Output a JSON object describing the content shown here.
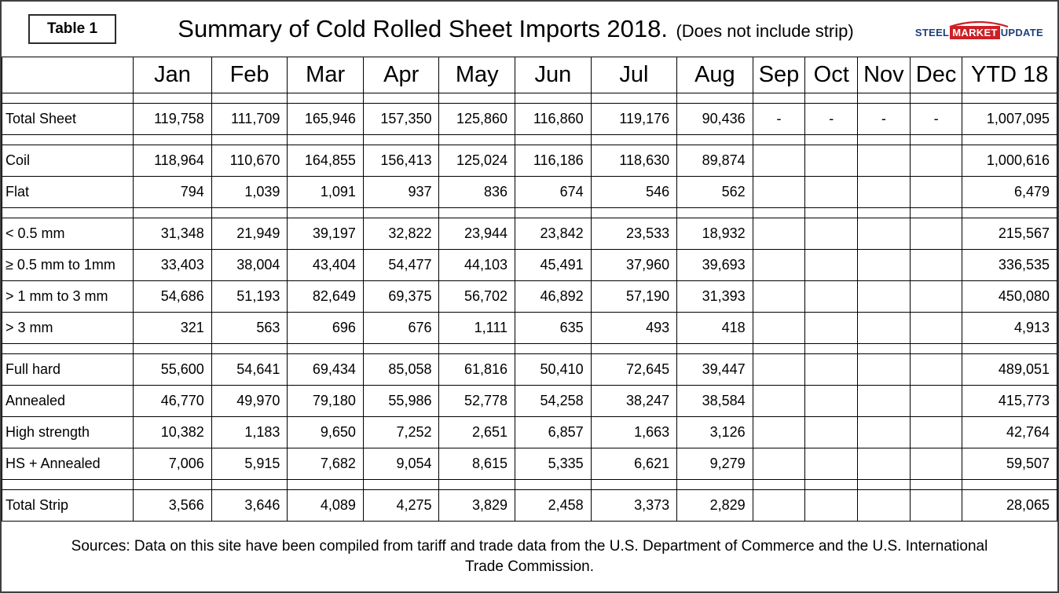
{
  "header": {
    "table_label": "Table 1",
    "title": "Summary of Cold Rolled Sheet Imports 2018.",
    "subtitle": "(Does not include strip)",
    "logo": {
      "steel": "STEEL",
      "market": "MARKET",
      "update": "UPDATE",
      "accent_red": "#cc2027",
      "accent_blue": "#1e3f7a"
    }
  },
  "chart_data": {
    "type": "table",
    "title": "Summary of Cold Rolled Sheet Imports 2018. (Does not include strip)",
    "columns": [
      "",
      "Jan",
      "Feb",
      "Mar",
      "Apr",
      "May",
      "Jun",
      "Jul",
      "Aug",
      "Sep",
      "Oct",
      "Nov",
      "Dec",
      "YTD 18"
    ],
    "rows": [
      {
        "spacer": true
      },
      {
        "label": "Total Sheet",
        "values": [
          "119,758",
          "111,709",
          "165,946",
          "157,350",
          "125,860",
          "116,860",
          "119,176",
          "90,436",
          "-",
          "-",
          "-",
          "-",
          "1,007,095"
        ]
      },
      {
        "spacer": true
      },
      {
        "label": "Coil",
        "values": [
          "118,964",
          "110,670",
          "164,855",
          "156,413",
          "125,024",
          "116,186",
          "118,630",
          "89,874",
          "",
          "",
          "",
          "",
          "1,000,616"
        ]
      },
      {
        "label": "Flat",
        "values": [
          "794",
          "1,039",
          "1,091",
          "937",
          "836",
          "674",
          "546",
          "562",
          "",
          "",
          "",
          "",
          "6,479"
        ]
      },
      {
        "spacer": true
      },
      {
        "label": "< 0.5 mm",
        "values": [
          "31,348",
          "21,949",
          "39,197",
          "32,822",
          "23,944",
          "23,842",
          "23,533",
          "18,932",
          "",
          "",
          "",
          "",
          "215,567"
        ]
      },
      {
        "label": "≥ 0.5 mm to 1mm",
        "values": [
          "33,403",
          "38,004",
          "43,404",
          "54,477",
          "44,103",
          "45,491",
          "37,960",
          "39,693",
          "",
          "",
          "",
          "",
          "336,535"
        ]
      },
      {
        "label": "> 1 mm to 3 mm",
        "values": [
          "54,686",
          "51,193",
          "82,649",
          "69,375",
          "56,702",
          "46,892",
          "57,190",
          "31,393",
          "",
          "",
          "",
          "",
          "450,080"
        ]
      },
      {
        "label": "> 3 mm",
        "values": [
          "321",
          "563",
          "696",
          "676",
          "1,111",
          "635",
          "493",
          "418",
          "",
          "",
          "",
          "",
          "4,913"
        ]
      },
      {
        "spacer": true
      },
      {
        "label": "Full hard",
        "values": [
          "55,600",
          "54,641",
          "69,434",
          "85,058",
          "61,816",
          "50,410",
          "72,645",
          "39,447",
          "",
          "",
          "",
          "",
          "489,051"
        ]
      },
      {
        "label": "Annealed",
        "values": [
          "46,770",
          "49,970",
          "79,180",
          "55,986",
          "52,778",
          "54,258",
          "38,247",
          "38,584",
          "",
          "",
          "",
          "",
          "415,773"
        ]
      },
      {
        "label": "High strength",
        "values": [
          "10,382",
          "1,183",
          "9,650",
          "7,252",
          "2,651",
          "6,857",
          "1,663",
          "3,126",
          "",
          "",
          "",
          "",
          "42,764"
        ]
      },
      {
        "label": "HS + Annealed",
        "values": [
          "7,006",
          "5,915",
          "7,682",
          "9,054",
          "8,615",
          "5,335",
          "6,621",
          "9,279",
          "",
          "",
          "",
          "",
          "59,507"
        ]
      },
      {
        "spacer": true
      },
      {
        "label": "Total Strip",
        "values": [
          "3,566",
          "3,646",
          "4,089",
          "4,275",
          "3,829",
          "2,458",
          "3,373",
          "2,829",
          "",
          "",
          "",
          "",
          "28,065"
        ]
      }
    ]
  },
  "footer": {
    "sources": "Sources: Data on this site have been compiled from tariff and trade data from the U.S. Department of Commerce and the U.S. International Trade Commission."
  }
}
